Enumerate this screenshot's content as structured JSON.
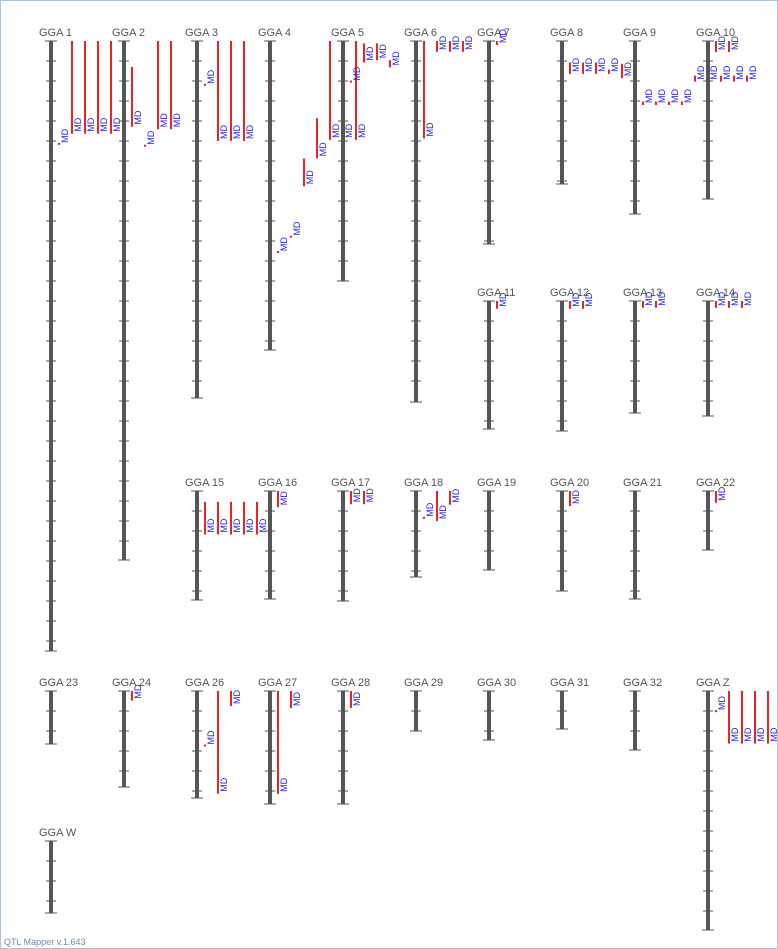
{
  "footer": "QTL Mapper v.1.643",
  "colors": {
    "chromosome": "#555555",
    "qtl_bar": "#ee2222",
    "qtl_label": "#2222dd",
    "label": "#555555",
    "border": "#a9c4dc"
  },
  "qtl_label": "MD",
  "chromosomes": [
    {
      "name": "GGA 1",
      "qtls": [
        {
          "s": 0.167,
          "e": 0.168,
          "l": 0.637
        },
        {
          "s": 0,
          "e": 0.152,
          "l": 0
        },
        {
          "s": 0,
          "e": 0.152,
          "l": 0
        },
        {
          "s": 0,
          "e": 0.152,
          "l": 0
        },
        {
          "s": 0,
          "e": 0.152,
          "l": 0
        }
      ]
    },
    {
      "name": "GGA 2",
      "qtls": [
        {
          "s": 0.05,
          "e": 0.165,
          "l": 0.15
        },
        {
          "s": 0.2,
          "e": 0.202,
          "l": 0.14
        },
        {
          "s": 0,
          "e": 0.17,
          "l": 0
        },
        {
          "s": 0,
          "e": 0.17,
          "l": 0
        }
      ]
    },
    {
      "name": "GGA 3",
      "qtls": [
        {
          "s": 0.12,
          "e": 0.123,
          "l": 0.08
        },
        {
          "s": 0,
          "e": 0.28,
          "l": 0
        },
        {
          "s": 0,
          "e": 0.28,
          "l": 0
        },
        {
          "s": 0,
          "e": 0.28,
          "l": 0
        }
      ]
    },
    {
      "name": "GGA 4",
      "qtls": [
        {
          "s": 0.68,
          "e": 0.683,
          "l": 0.7
        },
        {
          "s": 0.63,
          "e": 0.632,
          "l": 0.63
        },
        {
          "s": 0.38,
          "e": 0.47,
          "l": 0.44
        },
        {
          "s": 0.25,
          "e": 0.38,
          "l": 0.34
        },
        {
          "s": 0,
          "e": 0.32,
          "l": 0
        },
        {
          "s": 0,
          "e": 0.32,
          "l": 0
        },
        {
          "s": 0,
          "e": 0.32,
          "l": 0
        }
      ]
    },
    {
      "name": "GGA 5",
      "qtls": [
        {
          "s": 0.165,
          "e": 0.168,
          "l": 0.16
        },
        {
          "s": 0.01,
          "e": 0.09,
          "l": 0.0
        },
        {
          "s": 0.01,
          "e": 0.08,
          "l": 0.0
        },
        {
          "s": 0.08,
          "e": 0.11,
          "l": 0.05
        }
      ]
    },
    {
      "name": "GGA 6",
      "qtls": [
        {
          "s": 0,
          "e": 0.27,
          "l": 0
        },
        {
          "s": 0,
          "e": 0.03,
          "l": 0
        },
        {
          "s": 0,
          "e": 0.03,
          "l": 0
        },
        {
          "s": 0,
          "e": 0.03,
          "l": 0
        }
      ]
    },
    {
      "name": "GGA 7",
      "qtls": [
        {
          "s": 0,
          "e": 0.02,
          "l": 0
        }
      ]
    },
    {
      "name": "GGA 8",
      "qtls": [
        {
          "s": 0.15,
          "e": 0.23,
          "l": 0
        },
        {
          "s": 0.15,
          "e": 0.23,
          "l": 0
        },
        {
          "s": 0.15,
          "e": 0.23,
          "l": 0
        },
        {
          "s": 0.2,
          "e": 0.23,
          "l": 0
        },
        {
          "s": 0.16,
          "e": 0.26,
          "l": 0.18
        }
      ]
    },
    {
      "name": "GGA 9",
      "qtls": [
        {
          "s": 0.35,
          "e": 0.37,
          "l": 0.25
        },
        {
          "s": 0.35,
          "e": 0.37,
          "l": 0.25
        },
        {
          "s": 0.35,
          "e": 0.37,
          "l": 0.25
        },
        {
          "s": 0.35,
          "e": 0.37,
          "l": 0.25
        },
        {
          "s": 0.2,
          "e": 0.235,
          "l": 0.15
        },
        {
          "s": 0.2,
          "e": 0.235,
          "l": 0.15
        },
        {
          "s": 0.2,
          "e": 0.235,
          "l": 0.15
        },
        {
          "s": 0.2,
          "e": 0.235,
          "l": 0.15
        },
        {
          "s": 0.2,
          "e": 0.235,
          "l": 0.15
        }
      ]
    },
    {
      "name": "GGA 10",
      "qtls": [
        {
          "s": 0,
          "e": 0.07,
          "l": 0
        },
        {
          "s": 0,
          "e": 0.07,
          "l": 0
        }
      ]
    },
    {
      "name": "GGA 11",
      "qtls": [
        {
          "s": 0,
          "e": 0.06,
          "l": 0
        }
      ]
    },
    {
      "name": "GGA 12",
      "qtls": [
        {
          "s": 0,
          "e": 0.06,
          "l": 0
        },
        {
          "s": 0,
          "e": 0.06,
          "l": 0
        }
      ]
    },
    {
      "name": "GGA 13",
      "qtls": [
        {
          "s": 0,
          "e": 0.06,
          "l": 0
        },
        {
          "s": 0,
          "e": 0.06,
          "l": 0
        }
      ]
    },
    {
      "name": "GGA 14",
      "qtls": [
        {
          "s": 0,
          "e": 0.06,
          "l": 0
        },
        {
          "s": 0,
          "e": 0.06,
          "l": 0
        },
        {
          "s": 0,
          "e": 0.06,
          "l": 0
        }
      ]
    },
    {
      "name": "GGA 15",
      "qtls": [
        {
          "s": 0.1,
          "e": 0.4,
          "l": 0.1
        },
        {
          "s": 0.1,
          "e": 0.4,
          "l": 0.1
        },
        {
          "s": 0.1,
          "e": 0.4,
          "l": 0.1
        },
        {
          "s": 0.1,
          "e": 0.4,
          "l": 0.1
        },
        {
          "s": 0.1,
          "e": 0.4,
          "l": 0.1
        }
      ]
    },
    {
      "name": "GGA 16",
      "qtls": [
        {
          "s": 0,
          "e": 0.15,
          "l": 0
        }
      ]
    },
    {
      "name": "GGA 17",
      "qtls": [
        {
          "s": 0,
          "e": 0.12,
          "l": 0
        },
        {
          "s": 0,
          "e": 0.12,
          "l": 0
        }
      ]
    },
    {
      "name": "GGA 18",
      "qtls": [
        {
          "s": 0.3,
          "e": 0.31,
          "l": 0.25
        },
        {
          "s": 0,
          "e": 0.35,
          "l": 0
        },
        {
          "s": 0,
          "e": 0.16,
          "l": 0
        }
      ]
    },
    {
      "name": "GGA 19",
      "qtls": []
    },
    {
      "name": "GGA 20",
      "qtls": [
        {
          "s": 0,
          "e": 0.15,
          "l": 0
        }
      ]
    },
    {
      "name": "GGA 21",
      "qtls": []
    },
    {
      "name": "GGA 22",
      "qtls": [
        {
          "s": 0,
          "e": 0.2,
          "l": 0
        }
      ]
    },
    {
      "name": "GGA 23",
      "qtls": []
    },
    {
      "name": "GGA 24",
      "qtls": [
        {
          "s": 0,
          "e": 0.1,
          "l": 0
        }
      ]
    },
    {
      "name": "GGA 26",
      "qtls": [
        {
          "s": 0.5,
          "e": 0.51,
          "l": 0.47
        },
        {
          "s": 0,
          "e": 0.96,
          "l": 0.78
        },
        {
          "s": 0,
          "e": 0.14,
          "l": 0
        }
      ]
    },
    {
      "name": "GGA 27",
      "qtls": [
        {
          "s": 0,
          "e": 0.91,
          "l": 0.78
        },
        {
          "s": 0,
          "e": 0.15,
          "l": 0
        }
      ]
    },
    {
      "name": "GGA 28",
      "qtls": [
        {
          "s": 0,
          "e": 0.15,
          "l": 0
        }
      ]
    },
    {
      "name": "GGA 29",
      "qtls": []
    },
    {
      "name": "GGA 30",
      "qtls": []
    },
    {
      "name": "GGA 31",
      "qtls": []
    },
    {
      "name": "GGA 32",
      "qtls": []
    },
    {
      "name": "GGA Z",
      "qtls": [
        {
          "s": 0.08,
          "e": 0.085,
          "l": 0.03
        },
        {
          "s": 0,
          "e": 0.22,
          "l": 0
        },
        {
          "s": 0,
          "e": 0.22,
          "l": 0
        },
        {
          "s": 0,
          "e": 0.22,
          "l": 0
        },
        {
          "s": 0,
          "e": 0.22,
          "l": 0
        }
      ]
    },
    {
      "name": "GGA W",
      "qtls": []
    }
  ]
}
